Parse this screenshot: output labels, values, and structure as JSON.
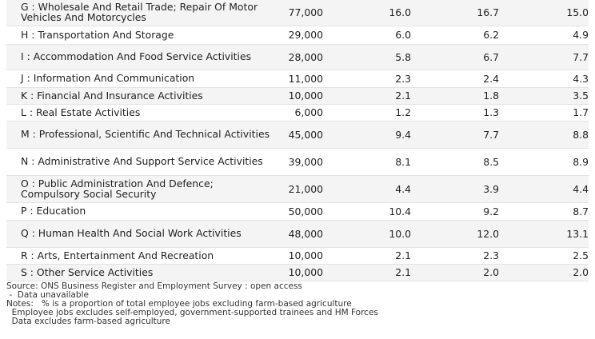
{
  "rows": [
    {
      "industry": "G : Wholesale And Retail Trade; Repair Of Motor Vehicles And Motorcycles",
      "jobs": "77,000",
      "pct1": "16.0",
      "pct2": "16.7",
      "pct3": "15.0"
    },
    {
      "industry": "H : Transportation And Storage",
      "jobs": "29,000",
      "pct1": "6.0",
      "pct2": "6.2",
      "pct3": "4.9"
    },
    {
      "industry": "I : Accommodation And Food Service Activities",
      "jobs": "28,000",
      "pct1": "5.8",
      "pct2": "6.7",
      "pct3": "7.7"
    },
    {
      "industry": "J : Information And Communication",
      "jobs": "11,000",
      "pct1": "2.3",
      "pct2": "2.4",
      "pct3": "4.3"
    },
    {
      "industry": "K : Financial And Insurance Activities",
      "jobs": "10,000",
      "pct1": "2.1",
      "pct2": "1.8",
      "pct3": "3.5"
    },
    {
      "industry": "L : Real Estate Activities",
      "jobs": "6,000",
      "pct1": "1.2",
      "pct2": "1.3",
      "pct3": "1.7"
    },
    {
      "industry": "M : Professional, Scientific And Technical Activities",
      "jobs": "45,000",
      "pct1": "9.4",
      "pct2": "7.7",
      "pct3": "8.8"
    },
    {
      "industry": "N : Administrative And Support Service Activities",
      "jobs": "39,000",
      "pct1": "8.1",
      "pct2": "8.5",
      "pct3": "8.9"
    },
    {
      "industry": "O : Public Administration And Defence; Compulsory Social Security",
      "jobs": "21,000",
      "pct1": "4.4",
      "pct2": "3.9",
      "pct3": "4.4"
    },
    {
      "industry": "P : Education",
      "jobs": "50,000",
      "pct1": "10.4",
      "pct2": "9.2",
      "pct3": "8.7"
    },
    {
      "industry": "Q : Human Health And Social Work Activities",
      "jobs": "48,000",
      "pct1": "10.0",
      "pct2": "12.0",
      "pct3": "13.1"
    },
    {
      "industry": "R : Arts, Entertainment And Recreation",
      "jobs": "10,000",
      "pct1": "2.1",
      "pct2": "2.3",
      "pct3": "2.5"
    },
    {
      "industry": "S : Other Service Activities",
      "jobs": "10,000",
      "pct1": "2.1",
      "pct2": "2.0",
      "pct3": "2.0"
    }
  ],
  "notes": {
    "source": "Source: ONS Business Register and Employment Survey : open access",
    "unavailable": " -  Data unavailable",
    "note1": "Notes:   % is a proportion of total employee jobs excluding farm-based agriculture",
    "note2": "  Employee jobs excludes self-employed, government-supported trainees and HM Forces",
    "note3": "  Data excludes farm-based agriculture"
  }
}
